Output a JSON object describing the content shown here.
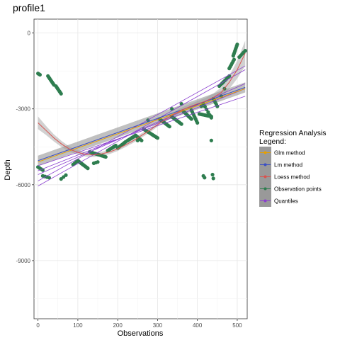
{
  "chart_data": {
    "type": "scatter",
    "title": "profile1",
    "xlabel": "Observations",
    "ylabel": "Depth",
    "xlim": [
      -10,
      525
    ],
    "ylim": [
      -11300,
      550
    ],
    "x_ticks": [
      0,
      100,
      200,
      300,
      400,
      500
    ],
    "y_ticks": [
      0,
      -3000,
      -6000,
      -9000
    ],
    "grid": true,
    "legend": {
      "title_lines": [
        "Regression Analysis",
        "Legend:"
      ],
      "placement": "right",
      "entries": [
        {
          "name": "Glm method",
          "color": "#e69f00"
        },
        {
          "name": "Lm method",
          "color": "#3b4fc4"
        },
        {
          "name": "Loess method",
          "color": "#d9534f"
        },
        {
          "name": "Observation points",
          "color": "#2e7d4f"
        },
        {
          "name": "Quantiles",
          "color": "#8a3fcf"
        }
      ]
    },
    "point_segments": [
      {
        "x0": 0,
        "y0": -1600,
        "x1": 5,
        "y1": -1650,
        "n": 3
      },
      {
        "x0": 0,
        "y0": -5300,
        "x1": 12,
        "y1": -5420,
        "n": 4
      },
      {
        "x0": 12,
        "y0": -5650,
        "x1": 28,
        "y1": -5720,
        "n": 4
      },
      {
        "x0": 25,
        "y0": -1700,
        "x1": 40,
        "y1": -2050,
        "n": 8
      },
      {
        "x0": 45,
        "y0": -2100,
        "x1": 58,
        "y1": -2400,
        "n": 7
      },
      {
        "x0": 58,
        "y0": -5770,
        "x1": 70,
        "y1": -5620,
        "n": 3
      },
      {
        "x0": 88,
        "y0": -5200,
        "x1": 100,
        "y1": -5050,
        "n": 4
      },
      {
        "x0": 100,
        "y0": -5050,
        "x1": 125,
        "y1": -5350,
        "n": 12
      },
      {
        "x0": 130,
        "y0": -4700,
        "x1": 170,
        "y1": -4900,
        "n": 14
      },
      {
        "x0": 140,
        "y0": -5150,
        "x1": 150,
        "y1": -5100,
        "n": 3
      },
      {
        "x0": 175,
        "y0": -4650,
        "x1": 195,
        "y1": -4450,
        "n": 8
      },
      {
        "x0": 200,
        "y0": -4550,
        "x1": 220,
        "y1": -4300,
        "n": 8
      },
      {
        "x0": 225,
        "y0": -4250,
        "x1": 245,
        "y1": -4050,
        "n": 8
      },
      {
        "x0": 245,
        "y0": -4050,
        "x1": 260,
        "y1": -4250,
        "n": 5
      },
      {
        "x0": 265,
        "y0": -3800,
        "x1": 300,
        "y1": -4150,
        "n": 12
      },
      {
        "x0": 305,
        "y0": -3400,
        "x1": 330,
        "y1": -3700,
        "n": 10
      },
      {
        "x0": 335,
        "y0": -3300,
        "x1": 360,
        "y1": -3600,
        "n": 10
      },
      {
        "x0": 365,
        "y0": -3100,
        "x1": 385,
        "y1": -3400,
        "n": 8
      },
      {
        "x0": 385,
        "y0": -3050,
        "x1": 400,
        "y1": -3550,
        "n": 8
      },
      {
        "x0": 405,
        "y0": -3200,
        "x1": 435,
        "y1": -3300,
        "n": 10
      },
      {
        "x0": 415,
        "y0": -2800,
        "x1": 435,
        "y1": -3350,
        "n": 6
      },
      {
        "x0": 440,
        "y0": -2600,
        "x1": 450,
        "y1": -2900,
        "n": 5
      },
      {
        "x0": 455,
        "y0": -2100,
        "x1": 480,
        "y1": -1700,
        "n": 8
      },
      {
        "x0": 480,
        "y0": -1400,
        "x1": 492,
        "y1": -1050,
        "n": 6
      },
      {
        "x0": 490,
        "y0": -900,
        "x1": 500,
        "y1": -450,
        "n": 8
      },
      {
        "x0": 505,
        "y0": -950,
        "x1": 520,
        "y1": -700,
        "n": 5
      }
    ],
    "extra_points": [
      {
        "x": 250,
        "y": -4250
      },
      {
        "x": 276,
        "y": -3450
      },
      {
        "x": 336,
        "y": -3000
      },
      {
        "x": 360,
        "y": -2800
      },
      {
        "x": 378,
        "y": -3300
      },
      {
        "x": 410,
        "y": -2900
      },
      {
        "x": 435,
        "y": -4250
      },
      {
        "x": 415,
        "y": -5650
      },
      {
        "x": 418,
        "y": -5720
      },
      {
        "x": 438,
        "y": -5600
      },
      {
        "x": 440,
        "y": -5750
      },
      {
        "x": 460,
        "y": -2500
      },
      {
        "x": 468,
        "y": -2200
      }
    ],
    "lm_line": {
      "x": [
        0,
        520
      ],
      "y": [
        -5050,
        -2150
      ]
    },
    "lm_band": {
      "x": [
        0,
        520
      ],
      "lower": [
        -5250,
        -2350
      ],
      "upper": [
        -4850,
        -1950
      ]
    },
    "glm_line": {
      "x": [
        0,
        520
      ],
      "y": [
        -5100,
        -2200
      ]
    },
    "loess_line": {
      "x": [
        0,
        20,
        40,
        60,
        80,
        100,
        120,
        140,
        160,
        180,
        200,
        220,
        240,
        260,
        280,
        300,
        320,
        340,
        360,
        380,
        400,
        420,
        440,
        460,
        480,
        500,
        520
      ],
      "y": [
        -3550,
        -3850,
        -4150,
        -4400,
        -4600,
        -4720,
        -4800,
        -4820,
        -4780,
        -4700,
        -4580,
        -4420,
        -4250,
        -4050,
        -3850,
        -3620,
        -3420,
        -3220,
        -3050,
        -2920,
        -2800,
        -2700,
        -2550,
        -2350,
        -1950,
        -1450,
        -800
      ],
      "band": [
        250,
        180,
        140,
        120,
        100,
        90,
        85,
        85,
        85,
        85,
        85,
        85,
        85,
        85,
        85,
        85,
        85,
        90,
        95,
        100,
        110,
        130,
        160,
        200,
        260,
        350,
        500
      ]
    },
    "quantile_lines": [
      {
        "x": [
          0,
          520
        ],
        "y": [
          -5850,
          -1300
        ]
      },
      {
        "x": [
          0,
          520
        ],
        "y": [
          -5600,
          -2000
        ]
      },
      {
        "x": [
          0,
          520
        ],
        "y": [
          -5450,
          -2200
        ]
      },
      {
        "x": [
          0,
          520
        ],
        "y": [
          -6050,
          -1450
        ]
      },
      {
        "x": [
          0,
          520
        ],
        "y": [
          -5250,
          -2500
        ]
      }
    ]
  }
}
